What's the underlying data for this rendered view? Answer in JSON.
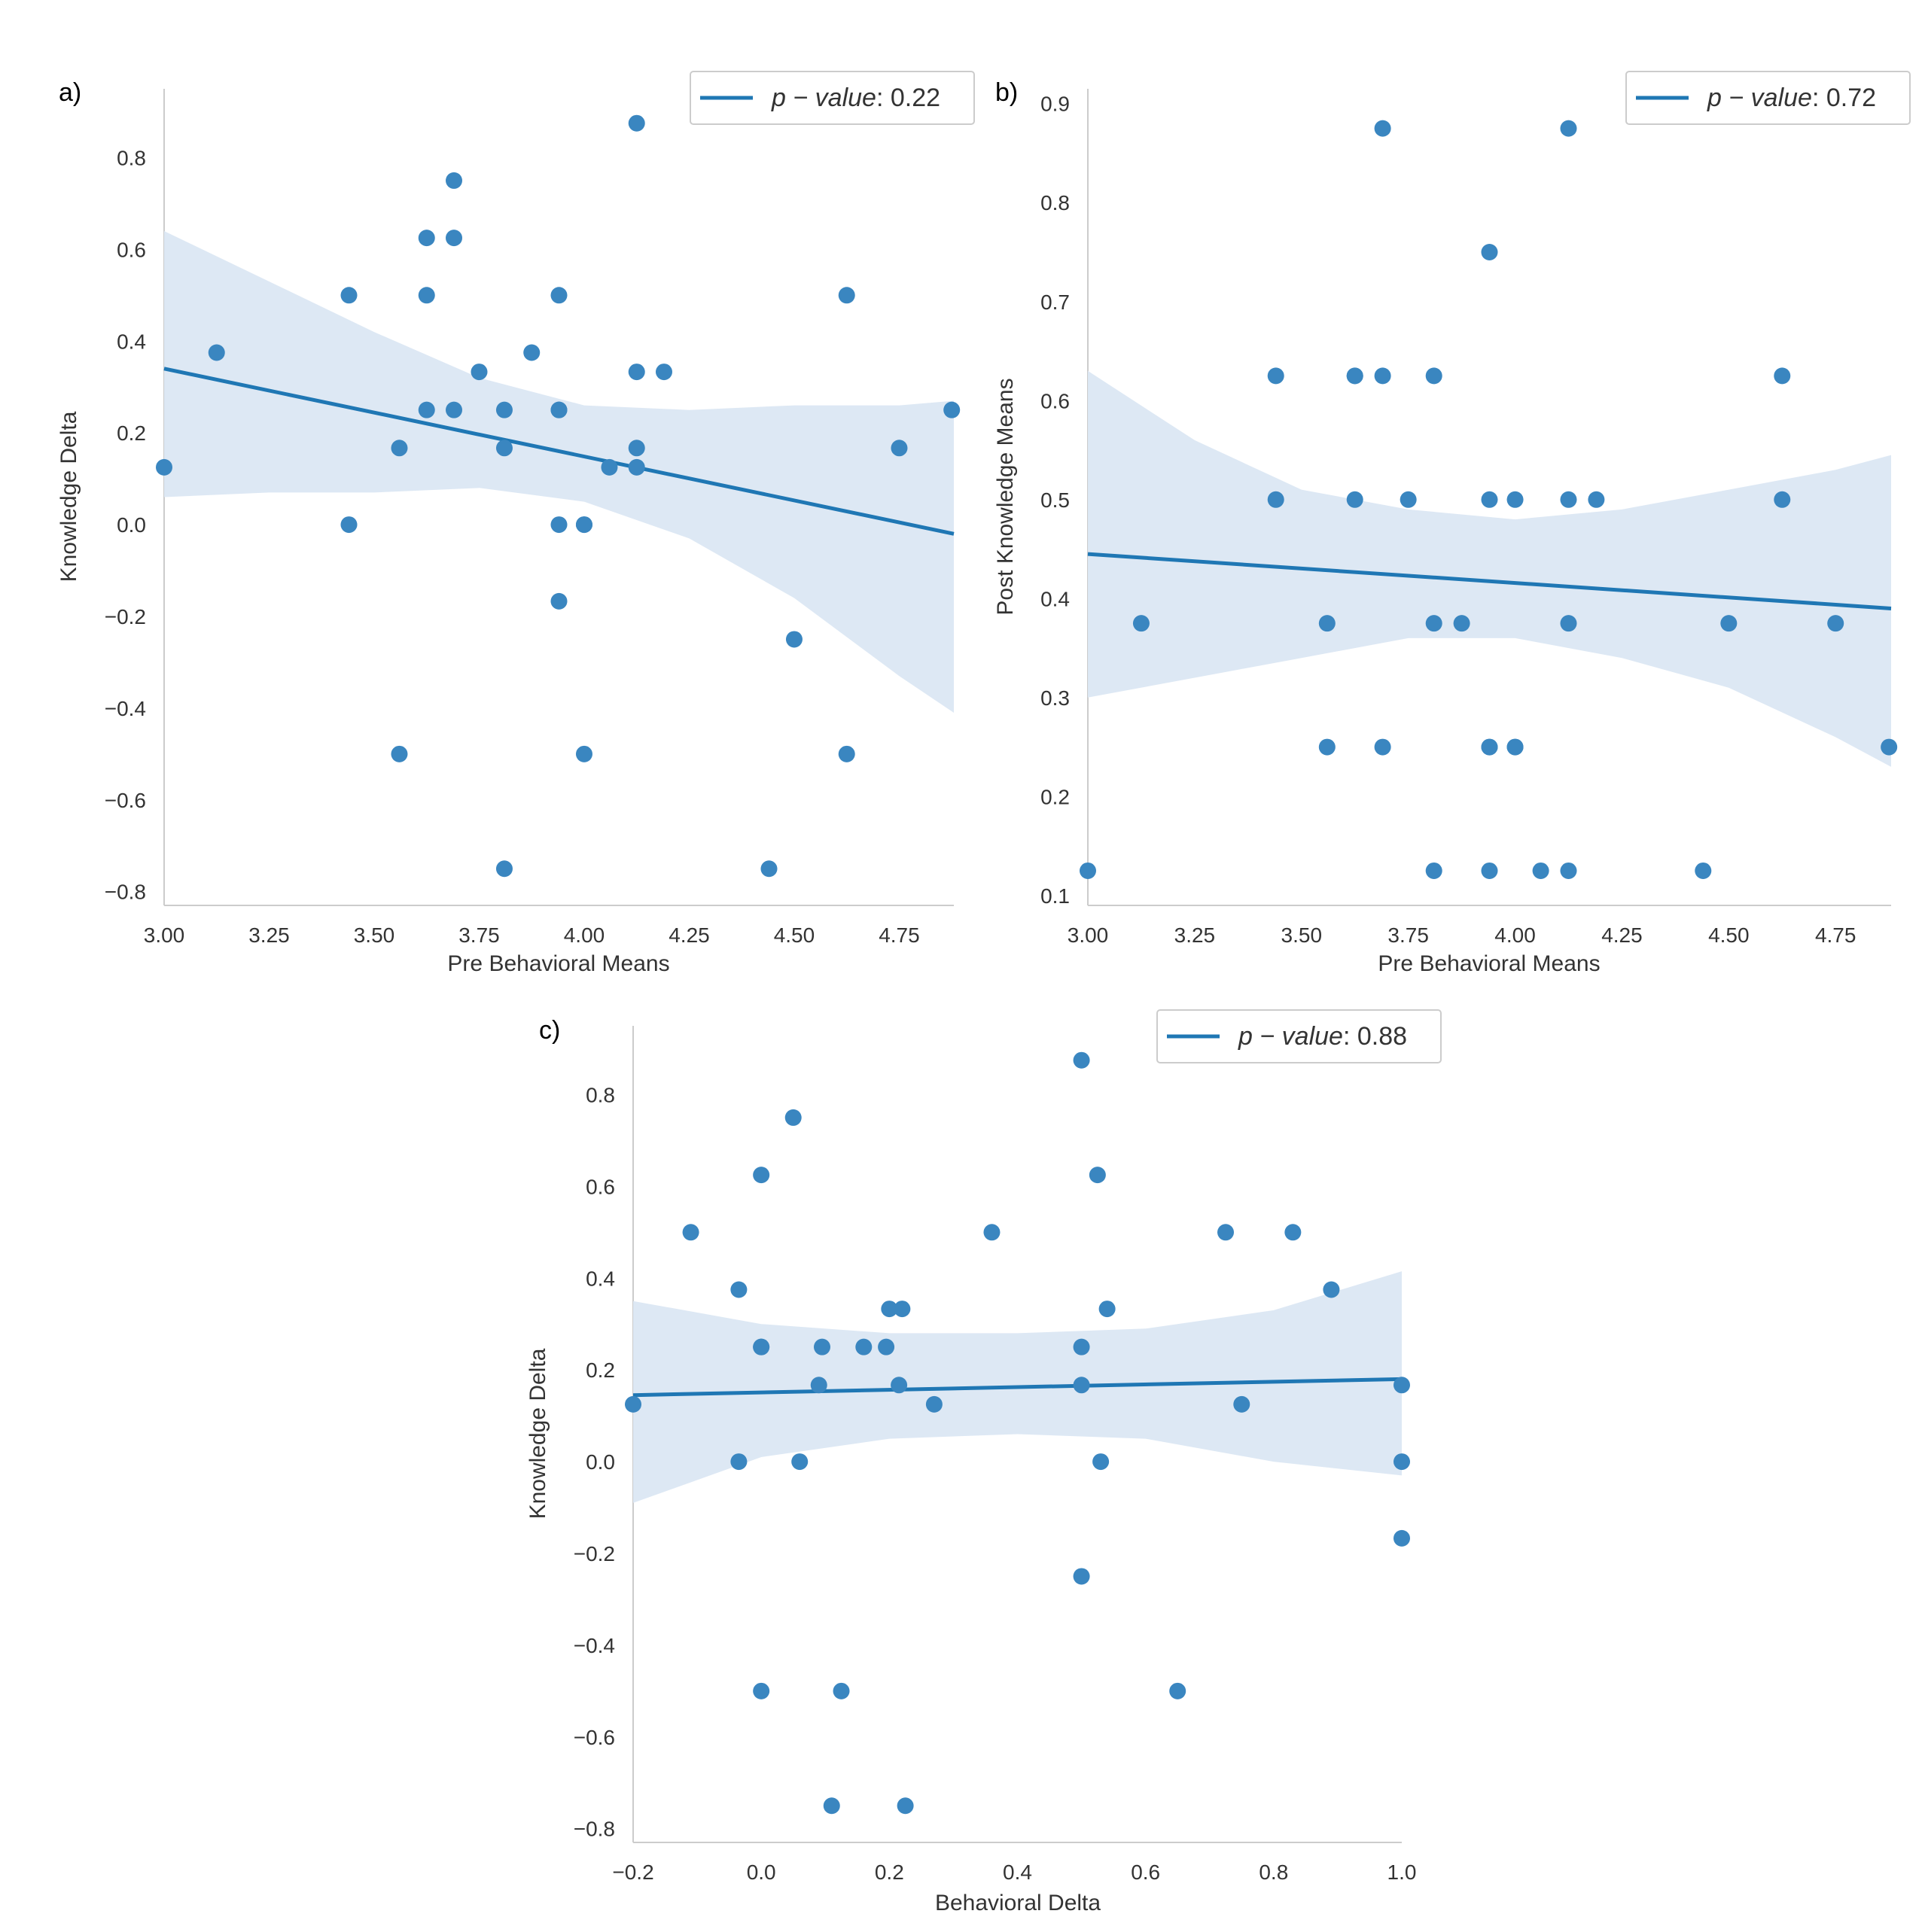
{
  "colors": {
    "point": "#3a86c0",
    "line": "#1f77b4",
    "band": "#dbe7f3",
    "axis": "#cccccc"
  },
  "chart_data": [
    {
      "type": "scatter",
      "panel_label": "a)",
      "xlabel": "Pre Behavioral Means",
      "ylabel": "Knowledge Delta",
      "xlim": [
        3.0,
        4.88
      ],
      "ylim": [
        -0.83,
        0.95
      ],
      "xticks": [
        3.0,
        3.25,
        3.5,
        3.75,
        4.0,
        4.25,
        4.5,
        4.75
      ],
      "xtick_labels": [
        "3.00",
        "3.25",
        "3.50",
        "3.75",
        "4.00",
        "4.25",
        "4.50",
        "4.75"
      ],
      "yticks": [
        -0.8,
        -0.6,
        -0.4,
        -0.2,
        0.0,
        0.2,
        0.4,
        0.6,
        0.8
      ],
      "ytick_labels": [
        "−0.8",
        "−0.6",
        "−0.4",
        "−0.2",
        "0.0",
        "0.2",
        "0.4",
        "0.6",
        "0.8"
      ],
      "points": [
        [
          3.0,
          0.125
        ],
        [
          3.125,
          0.375
        ],
        [
          3.44,
          0.5
        ],
        [
          3.44,
          0.0
        ],
        [
          3.56,
          0.167
        ],
        [
          3.56,
          -0.5
        ],
        [
          3.625,
          0.625
        ],
        [
          3.625,
          0.5
        ],
        [
          3.625,
          0.25
        ],
        [
          3.69,
          0.75
        ],
        [
          3.69,
          0.625
        ],
        [
          3.69,
          0.25
        ],
        [
          3.75,
          0.333
        ],
        [
          3.81,
          0.25
        ],
        [
          3.81,
          0.167
        ],
        [
          3.81,
          -0.75
        ],
        [
          3.875,
          0.375
        ],
        [
          3.94,
          0.5
        ],
        [
          3.94,
          0.25
        ],
        [
          3.94,
          0.25
        ],
        [
          3.94,
          0.0
        ],
        [
          3.94,
          -0.167
        ],
        [
          4.0,
          0.0
        ],
        [
          4.0,
          0.0
        ],
        [
          4.0,
          -0.5
        ],
        [
          4.06,
          0.125
        ],
        [
          4.125,
          0.875
        ],
        [
          4.125,
          0.333
        ],
        [
          4.125,
          0.167
        ],
        [
          4.125,
          0.125
        ],
        [
          4.19,
          0.333
        ],
        [
          4.44,
          -0.75
        ],
        [
          4.5,
          -0.25
        ],
        [
          4.625,
          0.5
        ],
        [
          4.625,
          -0.5
        ],
        [
          4.75,
          0.167
        ],
        [
          4.875,
          0.25
        ]
      ],
      "regression": {
        "x": [
          3.0,
          4.88
        ],
        "y": [
          0.34,
          -0.02
        ]
      },
      "ci_x": [
        3.0,
        3.25,
        3.5,
        3.75,
        4.0,
        4.25,
        4.5,
        4.75,
        4.88
      ],
      "ci_upper": [
        0.64,
        0.53,
        0.42,
        0.32,
        0.26,
        0.25,
        0.26,
        0.26,
        0.27
      ],
      "ci_lower": [
        0.06,
        0.07,
        0.07,
        0.08,
        0.05,
        -0.03,
        -0.16,
        -0.33,
        -0.41
      ],
      "legend": {
        "symbol": "p − value",
        "text": ": 0.22"
      }
    },
    {
      "type": "scatter",
      "panel_label": "b)",
      "xlabel": "Pre Behavioral Means",
      "ylabel": "Post Knowledge Means",
      "xlim": [
        3.0,
        4.88
      ],
      "ylim": [
        0.09,
        0.915
      ],
      "xticks": [
        3.0,
        3.25,
        3.5,
        3.75,
        4.0,
        4.25,
        4.5,
        4.75
      ],
      "xtick_labels": [
        "3.00",
        "3.25",
        "3.50",
        "3.75",
        "4.00",
        "4.25",
        "4.50",
        "4.75"
      ],
      "yticks": [
        0.1,
        0.2,
        0.3,
        0.4,
        0.5,
        0.6,
        0.7,
        0.8,
        0.9
      ],
      "ytick_labels": [
        "0.1",
        "0.2",
        "0.3",
        "0.4",
        "0.5",
        "0.6",
        "0.7",
        "0.8",
        "0.9"
      ],
      "points": [
        [
          3.0,
          0.125
        ],
        [
          3.125,
          0.375
        ],
        [
          3.44,
          0.625
        ],
        [
          3.44,
          0.5
        ],
        [
          3.56,
          0.375
        ],
        [
          3.56,
          0.25
        ],
        [
          3.625,
          0.625
        ],
        [
          3.625,
          0.625
        ],
        [
          3.625,
          0.5
        ],
        [
          3.69,
          0.875
        ],
        [
          3.69,
          0.625
        ],
        [
          3.69,
          0.25
        ],
        [
          3.75,
          0.5
        ],
        [
          3.81,
          0.625
        ],
        [
          3.81,
          0.375
        ],
        [
          3.81,
          0.125
        ],
        [
          3.875,
          0.375
        ],
        [
          3.94,
          0.75
        ],
        [
          3.94,
          0.5
        ],
        [
          3.94,
          0.25
        ],
        [
          3.94,
          0.25
        ],
        [
          3.94,
          0.125
        ],
        [
          4.0,
          0.5
        ],
        [
          4.0,
          0.25
        ],
        [
          4.0,
          0.25
        ],
        [
          4.06,
          0.125
        ],
        [
          4.125,
          0.875
        ],
        [
          4.125,
          0.5
        ],
        [
          4.125,
          0.375
        ],
        [
          4.125,
          0.125
        ],
        [
          4.19,
          0.5
        ],
        [
          4.44,
          0.125
        ],
        [
          4.5,
          0.375
        ],
        [
          4.625,
          0.625
        ],
        [
          4.625,
          0.5
        ],
        [
          4.75,
          0.375
        ],
        [
          4.875,
          0.25
        ]
      ],
      "regression": {
        "x": [
          3.0,
          4.88
        ],
        "y": [
          0.445,
          0.39
        ]
      },
      "ci_x": [
        3.0,
        3.25,
        3.5,
        3.75,
        4.0,
        4.25,
        4.5,
        4.75,
        4.88
      ],
      "ci_upper": [
        0.63,
        0.56,
        0.51,
        0.49,
        0.48,
        0.49,
        0.51,
        0.53,
        0.545
      ],
      "ci_lower": [
        0.3,
        0.32,
        0.34,
        0.36,
        0.36,
        0.34,
        0.31,
        0.26,
        0.23
      ],
      "legend": {
        "symbol": "p − value",
        "text": ": 0.72"
      }
    },
    {
      "type": "scatter",
      "panel_label": "c)",
      "xlabel": "Behavioral Delta",
      "ylabel": "Knowledge Delta",
      "xlim": [
        -0.2,
        1.0
      ],
      "ylim": [
        -0.83,
        0.95
      ],
      "xticks": [
        -0.2,
        0.0,
        0.2,
        0.4,
        0.6,
        0.8,
        1.0
      ],
      "xtick_labels": [
        "−0.2",
        "0.0",
        "0.2",
        "0.4",
        "0.6",
        "0.8",
        "1.0"
      ],
      "yticks": [
        -0.8,
        -0.6,
        -0.4,
        -0.2,
        0.0,
        0.2,
        0.4,
        0.6,
        0.8
      ],
      "ytick_labels": [
        "−0.8",
        "−0.6",
        "−0.4",
        "−0.2",
        "0.0",
        "0.2",
        "0.4",
        "0.6",
        "0.8"
      ],
      "points": [
        [
          -0.2,
          0.125
        ],
        [
          -0.11,
          0.5
        ],
        [
          -0.035,
          0.375
        ],
        [
          -0.035,
          0.0
        ],
        [
          0.0,
          0.625
        ],
        [
          0.0,
          0.25
        ],
        [
          0.0,
          0.25
        ],
        [
          0.0,
          -0.5
        ],
        [
          0.05,
          0.75
        ],
        [
          0.06,
          0.0
        ],
        [
          0.09,
          0.167
        ],
        [
          0.095,
          0.25
        ],
        [
          0.11,
          -0.75
        ],
        [
          0.125,
          -0.5
        ],
        [
          0.16,
          0.25
        ],
        [
          0.195,
          0.25
        ],
        [
          0.2,
          0.333
        ],
        [
          0.215,
          0.167
        ],
        [
          0.22,
          0.333
        ],
        [
          0.225,
          -0.75
        ],
        [
          0.27,
          0.125
        ],
        [
          0.36,
          0.5
        ],
        [
          0.5,
          0.875
        ],
        [
          0.5,
          0.25
        ],
        [
          0.5,
          0.167
        ],
        [
          0.5,
          -0.25
        ],
        [
          0.525,
          0.625
        ],
        [
          0.53,
          0.0
        ],
        [
          0.54,
          0.333
        ],
        [
          0.65,
          -0.5
        ],
        [
          0.725,
          0.5
        ],
        [
          0.75,
          0.125
        ],
        [
          0.83,
          0.5
        ],
        [
          0.89,
          0.375
        ],
        [
          1.0,
          0.167
        ],
        [
          1.0,
          0.0
        ],
        [
          1.0,
          -0.167
        ]
      ],
      "regression": {
        "x": [
          -0.2,
          1.0
        ],
        "y": [
          0.145,
          0.18
        ]
      },
      "ci_x": [
        -0.2,
        0.0,
        0.2,
        0.4,
        0.6,
        0.8,
        1.0
      ],
      "ci_upper": [
        0.35,
        0.3,
        0.28,
        0.28,
        0.29,
        0.33,
        0.415
      ],
      "ci_lower": [
        -0.09,
        0.01,
        0.05,
        0.06,
        0.05,
        0.0,
        -0.03
      ],
      "legend": {
        "symbol": "p − value",
        "text": ": 0.88"
      }
    }
  ]
}
